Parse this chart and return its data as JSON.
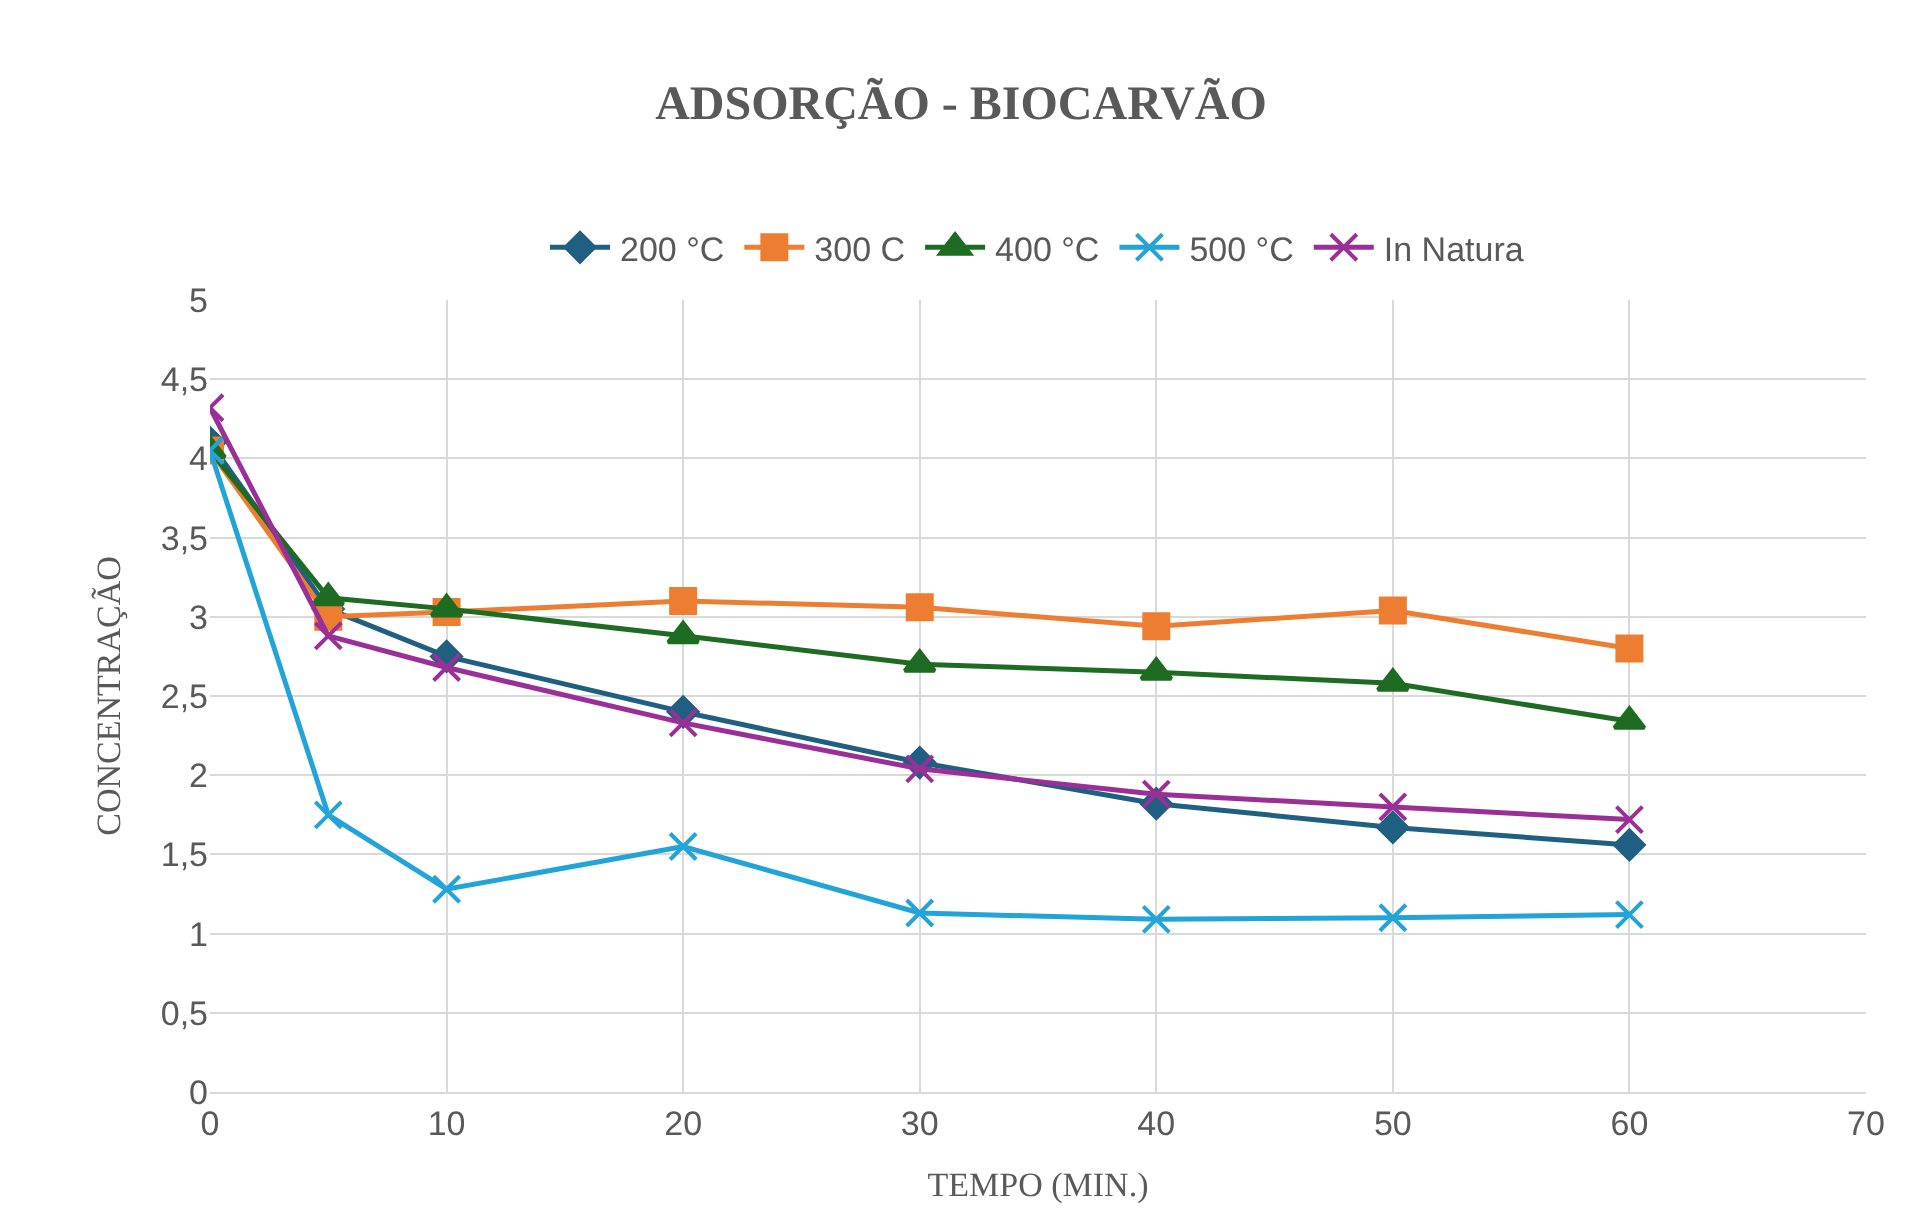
{
  "chart_data": {
    "type": "line",
    "title": "ADSORÇÃO - BIOCARVÃO",
    "xlabel": "TEMPO (MIN.)",
    "ylabel": "CONCENTRAÇÃO",
    "x": [
      0,
      5,
      10,
      20,
      30,
      40,
      50,
      60
    ],
    "series": [
      {
        "name": "200 °C",
        "color": "#1f5f82",
        "marker": "diamond",
        "values": [
          4.1,
          3.05,
          2.75,
          2.4,
          2.08,
          1.82,
          1.67,
          1.56
        ]
      },
      {
        "name": "300 C",
        "color": "#ed7d31",
        "marker": "square",
        "values": [
          4.05,
          3.0,
          3.03,
          3.1,
          3.06,
          2.94,
          3.04,
          2.8
        ]
      },
      {
        "name": "400 °C",
        "color": "#1e6b22",
        "marker": "triangle",
        "values": [
          4.05,
          3.12,
          3.05,
          2.88,
          2.7,
          2.65,
          2.58,
          2.34
        ]
      },
      {
        "name": "500 °C",
        "color": "#22a4d8",
        "marker": "cross",
        "values": [
          4.05,
          1.75,
          1.28,
          1.55,
          1.13,
          1.09,
          1.1,
          1.12
        ]
      },
      {
        "name": "In Natura",
        "color": "#9b2f98",
        "marker": "cross",
        "values": [
          4.32,
          2.88,
          2.68,
          2.33,
          2.04,
          1.88,
          1.8,
          1.72
        ]
      }
    ],
    "xlim": [
      0,
      70
    ],
    "xticks": [
      0,
      10,
      20,
      30,
      40,
      50,
      60,
      70
    ],
    "ylim": [
      0,
      5
    ],
    "yticks": [
      0,
      {
        "value": 0.5,
        "label": "0,5"
      },
      1,
      {
        "value": 1.5,
        "label": "1,5"
      },
      2,
      {
        "value": 2.5,
        "label": "2,5"
      },
      3,
      {
        "value": 3.5,
        "label": "3,5"
      },
      4,
      {
        "value": 4.5,
        "label": "4,5"
      },
      5
    ],
    "grid": true,
    "legend": "top",
    "line_style": "solid"
  }
}
